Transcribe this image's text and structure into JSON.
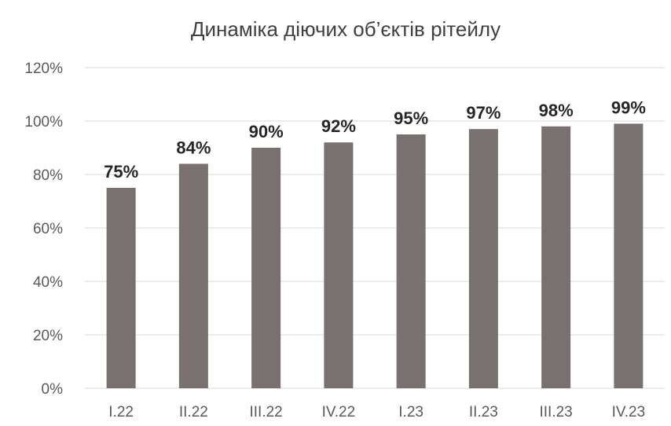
{
  "chart_data": {
    "type": "bar",
    "title": "Динаміка діючих об’єктів рітейлу",
    "xlabel": "",
    "ylabel": "",
    "categories": [
      "I.22",
      "II.22",
      "III.22",
      "IV.22",
      "I.23",
      "II.23",
      "III.23",
      "IV.23"
    ],
    "values": [
      75,
      84,
      90,
      92,
      95,
      97,
      98,
      99
    ],
    "data_labels": [
      "75%",
      "84%",
      "90%",
      "92%",
      "95%",
      "97%",
      "98%",
      "99%"
    ],
    "ylim": [
      0,
      120
    ],
    "yticks": [
      0,
      20,
      40,
      60,
      80,
      100,
      120
    ],
    "ytick_labels": [
      "0%",
      "20%",
      "40%",
      "60%",
      "80%",
      "100%",
      "120%"
    ],
    "grid": true,
    "legend": "none",
    "bar_color": "#787170"
  }
}
